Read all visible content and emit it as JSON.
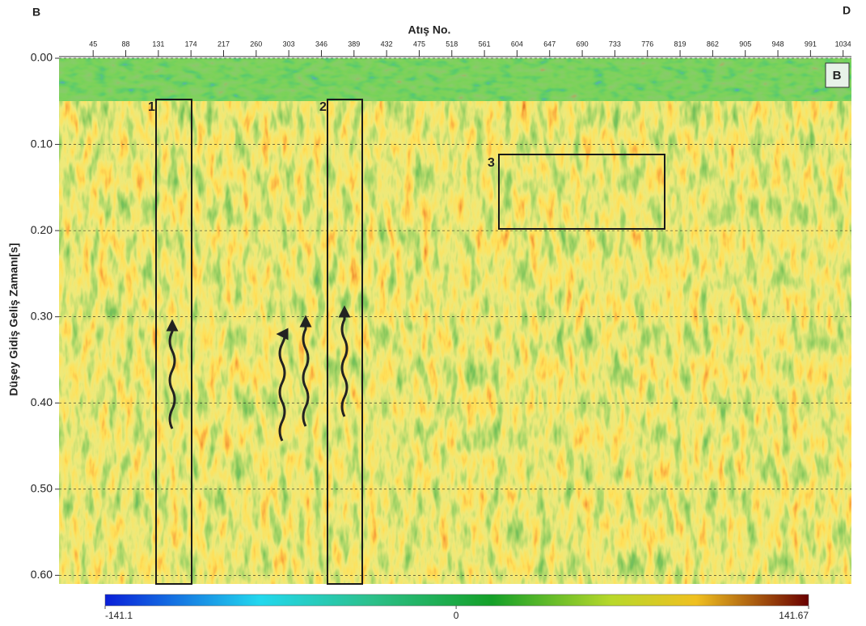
{
  "chart_data": {
    "type": "seismic-section",
    "corner_labels": {
      "left": "B",
      "right": "D"
    },
    "x_label": "Atış No.",
    "y_label": "Düşey Gidiş Geliş Zamanı[s]",
    "xlim": [
      0,
      1045
    ],
    "xticks": [
      45,
      88,
      131,
      174,
      217,
      260,
      303,
      346,
      389,
      432,
      475,
      518,
      561,
      604,
      647,
      690,
      733,
      776,
      819,
      862,
      905,
      948,
      991,
      1034
    ],
    "ylim": [
      0,
      0.61
    ],
    "yticks": [
      {
        "value": 0,
        "label": "0.00"
      },
      {
        "value": 0.1,
        "label": "0.10"
      },
      {
        "value": 0.2,
        "label": "0.20"
      },
      {
        "value": 0.3,
        "label": "0.30"
      },
      {
        "value": 0.4,
        "label": "0.40"
      },
      {
        "value": 0.5,
        "label": "0.50"
      },
      {
        "value": 0.6,
        "label": "0.60"
      }
    ],
    "grid": true,
    "colorbar": {
      "lim": [
        -141.1,
        141.67
      ],
      "ticks": [
        -141.1,
        0,
        141.67
      ]
    },
    "annotations": [
      "1",
      "2",
      "3",
      "B"
    ]
  }
}
